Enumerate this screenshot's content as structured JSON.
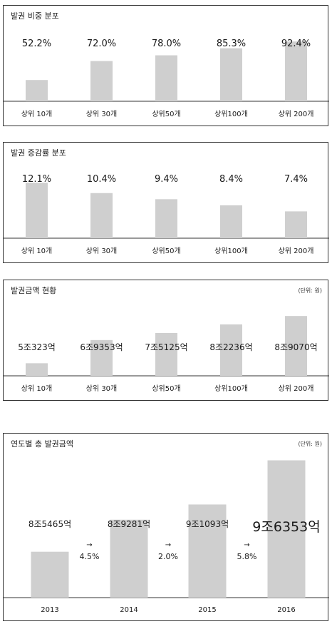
{
  "chart_data": [
    {
      "type": "bar",
      "title": "발권 비중 분포",
      "categories": [
        "상위 10개",
        "상위 30개",
        "상위50개",
        "상위100개",
        "상위 200개"
      ],
      "values": [
        52.2,
        72.0,
        78.0,
        85.3,
        92.4
      ],
      "value_labels": [
        "52.2%",
        "72.0%",
        "78.0%",
        "85.3%",
        "92.4%"
      ],
      "ylim": [
        30,
        100
      ]
    },
    {
      "type": "bar",
      "title": "발권 증감률 분포",
      "categories": [
        "상위 10개",
        "상위 30개",
        "상위50개",
        "상위100개",
        "상위 200개"
      ],
      "values": [
        12.1,
        10.4,
        9.4,
        8.4,
        7.4
      ],
      "value_labels": [
        "12.1%",
        "10.4%",
        "9.4%",
        "8.4%",
        "7.4%"
      ],
      "ylim": [
        3,
        14
      ]
    },
    {
      "type": "bar",
      "title": "발권금액 현황",
      "unit": "(단위: 원)",
      "categories": [
        "상위 10개",
        "상위 30개",
        "상위50개",
        "상위100개",
        "상위 200개"
      ],
      "values": [
        50323,
        69353,
        75125,
        82236,
        89070
      ],
      "value_labels": [
        "5조323억",
        "6조9353억",
        "7조5125억",
        "8조2236억",
        "8조9070억"
      ],
      "ylim": [
        40000,
        95000
      ]
    },
    {
      "type": "bar",
      "title": "연도별 총 발권금액",
      "unit": "(단위: 원)",
      "categories": [
        "2013",
        "2014",
        "2015",
        "2016"
      ],
      "values": [
        85465,
        89281,
        91093,
        96353
      ],
      "value_labels": [
        "8조5465억",
        "8조9281억",
        "9조1093억",
        "9조6353억"
      ],
      "growth": [
        {
          "arrow": "→",
          "label": "4.5%"
        },
        {
          "arrow": "→",
          "label": "2.0%"
        },
        {
          "arrow": "→",
          "label": "5.8%"
        }
      ],
      "ylim": [
        80000,
        97500
      ]
    }
  ]
}
